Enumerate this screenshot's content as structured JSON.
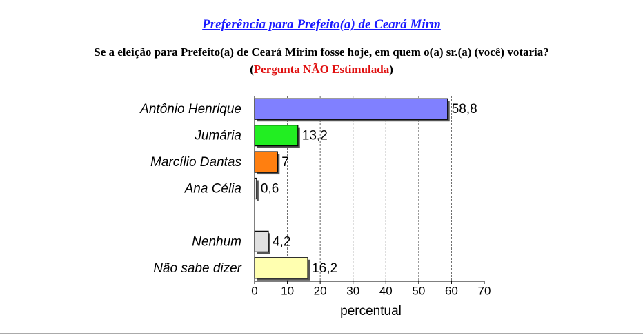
{
  "chart_data": {
    "type": "bar",
    "orientation": "horizontal",
    "title": "Preferência para Prefeito(a) de Ceará Mirm",
    "question": {
      "before": "Se a eleição para ",
      "underlined": "Prefeito(a) de Ceará Mirim",
      "after": " fosse hoje, em quem o(a) sr.(a) (você) votaria?"
    },
    "note": {
      "open": "(",
      "text": "Pergunta NÃO Estimulada",
      "close": ")"
    },
    "categories": [
      "Antônio Henrique",
      "Jumária",
      "Marcílio Dantas",
      "Ana Célia",
      null,
      "Nenhum",
      "Não sabe dizer"
    ],
    "values": [
      58.8,
      13.2,
      7,
      0.6,
      null,
      4.2,
      16.2
    ],
    "value_labels": [
      "58,8",
      "13,2",
      "7",
      "0,6",
      null,
      "4,2",
      "16,2"
    ],
    "colors": [
      "#8080ff",
      "#22ee22",
      "#ff7f10",
      "#e8e8e8",
      null,
      "#e0e0e0",
      "#ffffb0"
    ],
    "xlabel": "percentual",
    "xlim": [
      0,
      70
    ],
    "xticks": [
      0,
      10,
      20,
      30,
      40,
      50,
      60,
      70
    ],
    "grid": true
  }
}
